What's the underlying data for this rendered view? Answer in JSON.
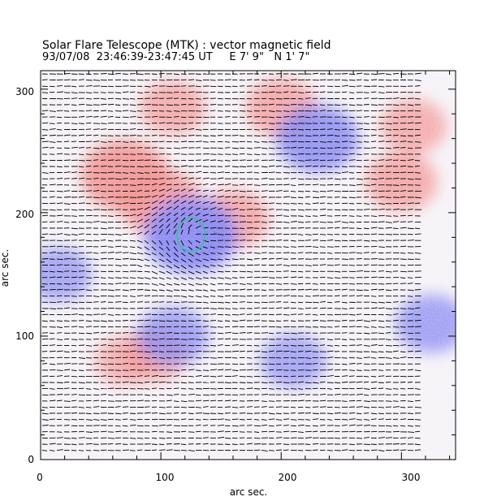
{
  "header": {
    "title": "Solar Flare Telescope (MTK) : vector magnetic field",
    "subtitle": "93/07/08  23:46:39-23:47:45 UT     E 7' 9\"   N 1' 7\""
  },
  "chart_data": {
    "type": "heatmap",
    "xlabel": "arc sec.",
    "ylabel": "arc sec.",
    "xlim": [
      0,
      345
    ],
    "ylim": [
      0,
      315
    ],
    "x_ticks": [
      "0",
      "100",
      "200",
      "300"
    ],
    "y_ticks": [
      "0",
      "100",
      "200",
      "300"
    ],
    "colors": {
      "positive_polarity": "#f07878",
      "negative_polarity": "#6a6af0",
      "vector_arrows": "#000000",
      "contour": "#22cc88",
      "background": "#ffffff"
    },
    "contour_center": [
      125,
      182
    ],
    "regions": [
      {
        "polarity": "positive",
        "center": [
          70,
          230
        ],
        "strength": 0.9
      },
      {
        "polarity": "positive",
        "center": [
          100,
          208
        ],
        "strength": 0.8
      },
      {
        "polarity": "positive",
        "center": [
          110,
          285
        ],
        "strength": 0.5
      },
      {
        "polarity": "positive",
        "center": [
          160,
          195
        ],
        "strength": 0.6
      },
      {
        "polarity": "positive",
        "center": [
          200,
          285
        ],
        "strength": 0.6
      },
      {
        "polarity": "positive",
        "center": [
          300,
          225
        ],
        "strength": 0.6
      },
      {
        "polarity": "positive",
        "center": [
          310,
          270
        ],
        "strength": 0.5
      },
      {
        "polarity": "positive",
        "center": [
          95,
          85
        ],
        "strength": 0.5
      },
      {
        "polarity": "positive",
        "center": [
          70,
          80
        ],
        "strength": 0.4
      },
      {
        "polarity": "negative",
        "center": [
          125,
          182
        ],
        "strength": 1.0
      },
      {
        "polarity": "negative",
        "center": [
          230,
          260
        ],
        "strength": 0.8
      },
      {
        "polarity": "negative",
        "center": [
          110,
          100
        ],
        "strength": 0.6
      },
      {
        "polarity": "negative",
        "center": [
          15,
          150
        ],
        "strength": 0.5
      },
      {
        "polarity": "negative",
        "center": [
          325,
          110
        ],
        "strength": 0.6
      },
      {
        "polarity": "negative",
        "center": [
          210,
          80
        ],
        "strength": 0.5
      }
    ]
  }
}
